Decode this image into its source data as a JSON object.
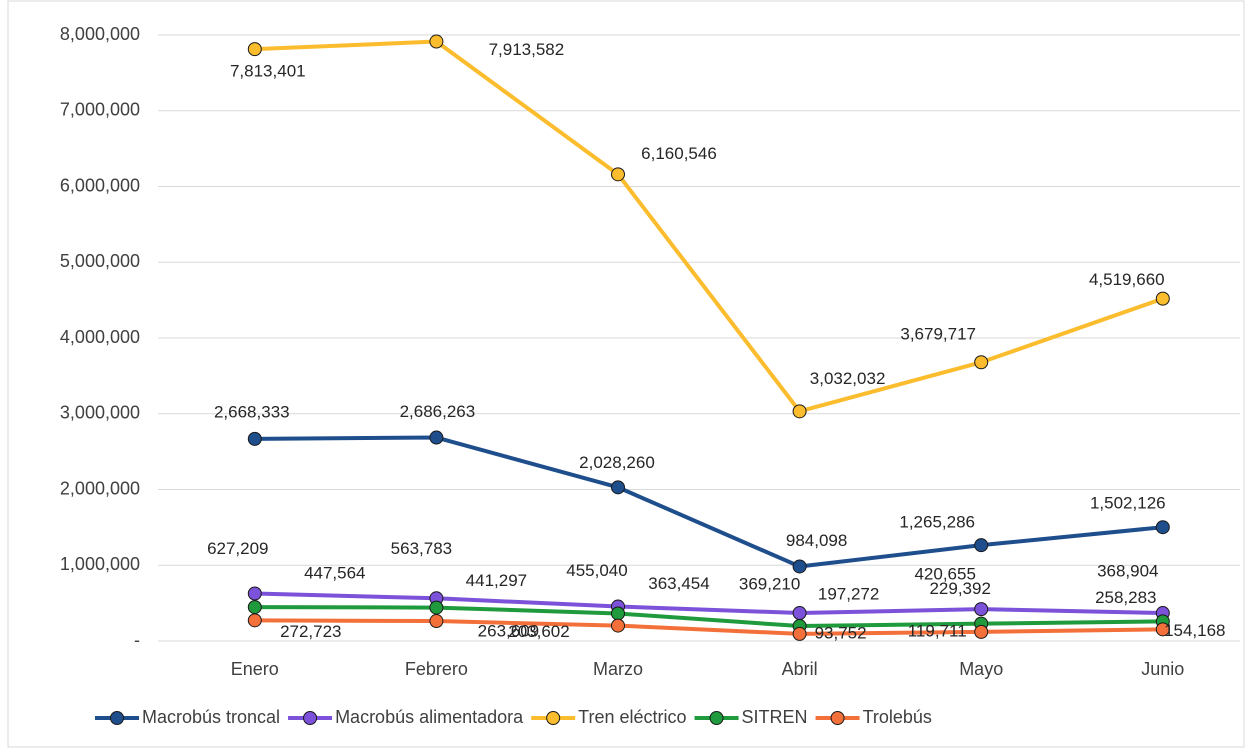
{
  "chart_data": {
    "type": "line",
    "categories": [
      "Enero",
      "Febrero",
      "Marzo",
      "Abril",
      "Mayo",
      "Junio"
    ],
    "ylim": [
      0,
      8000000
    ],
    "yticks": [
      {
        "value": 0,
        "label": "-"
      },
      {
        "value": 1000000,
        "label": "1,000,000"
      },
      {
        "value": 2000000,
        "label": "2,000,000"
      },
      {
        "value": 3000000,
        "label": "3,000,000"
      },
      {
        "value": 4000000,
        "label": "4,000,000"
      },
      {
        "value": 5000000,
        "label": "5,000,000"
      },
      {
        "value": 6000000,
        "label": "6,000,000"
      },
      {
        "value": 7000000,
        "label": "7,000,000"
      },
      {
        "value": 8000000,
        "label": "8,000,000"
      }
    ],
    "grid": true,
    "legend": "bottom",
    "series": [
      {
        "name": "Macrobús troncal",
        "color": "#1f4e8c",
        "values": [
          2668333,
          2686263,
          2028260,
          984098,
          1265286,
          1502126
        ],
        "value_labels": [
          "2,668,333",
          "2,686,263",
          "2,028,260",
          "984,098",
          "1,265,286",
          "1,502,126"
        ]
      },
      {
        "name": "Macrobús alimentadora",
        "color": "#7b52d9",
        "values": [
          627209,
          563783,
          455040,
          369210,
          420655,
          368904
        ],
        "value_labels": [
          "627,209",
          "563,783",
          "455,040",
          "369,210",
          "420,655",
          "368,904"
        ]
      },
      {
        "name": "Tren eléctrico",
        "color": "#fbbc2d",
        "values": [
          7813401,
          7913582,
          6160546,
          3032032,
          3679717,
          4519660
        ],
        "value_labels": [
          "7,813,401",
          "7,913,582",
          "6,160,546",
          "3,032,032",
          "3,679,717",
          "4,519,660"
        ]
      },
      {
        "name": "SITREN",
        "color": "#1f9a3c",
        "values": [
          447564,
          441297,
          363454,
          197272,
          229392,
          258283
        ],
        "value_labels": [
          "447,564",
          "441,297",
          "363,454",
          "197,272",
          "229,392",
          "258,283"
        ]
      },
      {
        "name": "Trolebús",
        "color": "#f4703a",
        "values": [
          272723,
          263609,
          203602,
          93752,
          119711,
          154168
        ],
        "value_labels": [
          "272,723",
          "263,609",
          "203,602",
          "93,752",
          "119,711",
          "154,168"
        ]
      }
    ]
  }
}
